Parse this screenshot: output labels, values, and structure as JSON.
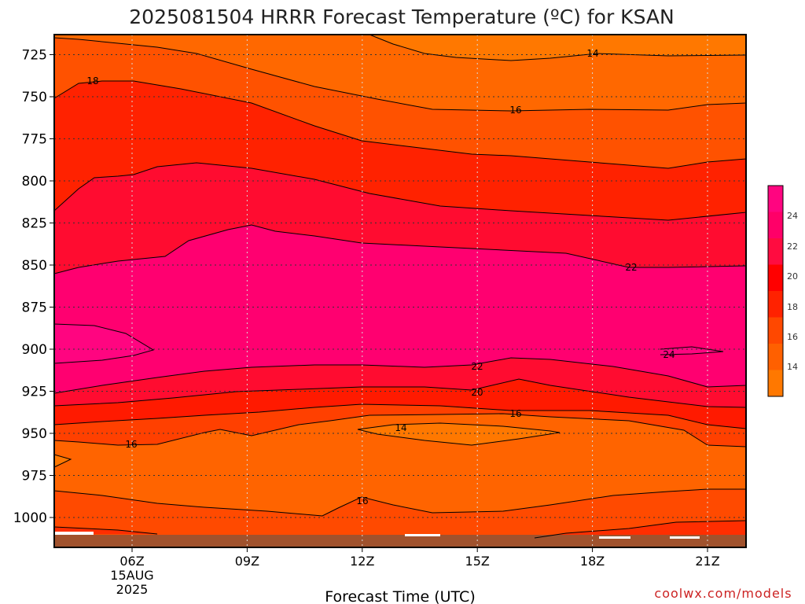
{
  "chart_data": {
    "type": "heatmap",
    "title": "2025081504 HRRR Forecast Temperature (ºC) for KSAN",
    "xlabel": "Forecast Time (UTC)",
    "ylabel": "",
    "x_ticks": [
      "06Z",
      "09Z",
      "12Z",
      "15Z",
      "18Z",
      "21Z"
    ],
    "x_date_label": [
      "15AUG",
      "2025"
    ],
    "y_ticks": [
      725,
      750,
      775,
      800,
      825,
      850,
      875,
      900,
      925,
      950,
      975,
      1000
    ],
    "y_axis": "pressure (hPa), decreasing upward",
    "x_range": [
      "04Z",
      "22Z"
    ],
    "y_range": [
      1015,
      710
    ],
    "grid": true,
    "colorbar": {
      "ticks": [
        14,
        16,
        18,
        20,
        22,
        24
      ],
      "colors": [
        "#ff7800",
        "#ff6000",
        "#ff4800",
        "#ff2200",
        "#ff0000",
        "#ff0c40",
        "#ff0068",
        "#ff0580"
      ]
    },
    "contour_labels": [
      {
        "value": "14",
        "time": "16.9Z",
        "pressure": 720
      },
      {
        "value": "18",
        "time": "4.6Z",
        "pressure": 743
      },
      {
        "value": "16",
        "time": "16Z",
        "pressure": 754
      },
      {
        "value": "22",
        "time": "19Z",
        "pressure": 854
      },
      {
        "value": "24",
        "time": "20Z",
        "pressure": 896
      },
      {
        "value": "22",
        "time": "15Z",
        "pressure": 900
      },
      {
        "value": "20",
        "time": "15Z",
        "pressure": 915
      },
      {
        "value": "16",
        "time": "16Z",
        "pressure": 930
      },
      {
        "value": "14",
        "time": "13Z",
        "pressure": 940
      },
      {
        "value": "16",
        "time": "06Z",
        "pressure": 950
      },
      {
        "value": "16",
        "time": "12Z",
        "pressure": 985
      }
    ],
    "credit": "coolwx.com/models"
  }
}
